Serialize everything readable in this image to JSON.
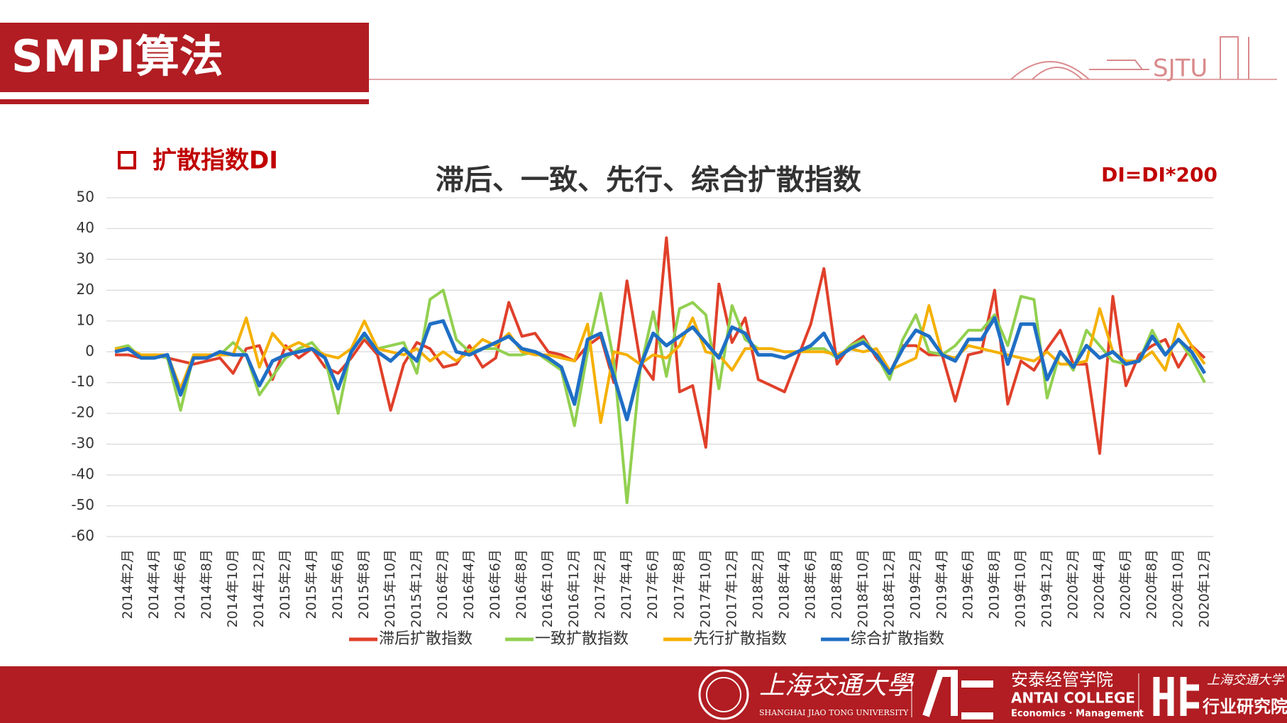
{
  "header": {
    "title": "SMPI算法",
    "logo": "SJTU"
  },
  "section": "扩散指数DI",
  "chart_data": {
    "type": "line",
    "title": "滞后、一致、先行、综合扩散指数",
    "annotation": "DI=DI*200",
    "ylim": [
      -60,
      50
    ],
    "yticks": [
      -60,
      -50,
      -40,
      -30,
      -20,
      -10,
      0,
      10,
      20,
      30,
      40,
      50
    ],
    "grid": true,
    "legend": "bottom",
    "categories": [
      null,
      "2014年2月",
      null,
      "2014年4月",
      null,
      "2014年6月",
      null,
      "2014年8月",
      null,
      "2014年10月",
      null,
      "2014年12月",
      null,
      "2015年2月",
      null,
      "2015年4月",
      null,
      "2015年6月",
      null,
      "2015年8月",
      null,
      "2015年10月",
      null,
      "2015年12月",
      null,
      "2016年2月",
      null,
      "2016年4月",
      null,
      "2016年6月",
      null,
      "2016年8月",
      null,
      "2016年10月",
      null,
      "2016年12月",
      null,
      "2017年2月",
      null,
      "2017年4月",
      null,
      "2017年6月",
      null,
      "2017年8月",
      null,
      "2017年10月",
      null,
      "2017年12月",
      null,
      "2018年2月",
      null,
      "2018年4月",
      null,
      "2018年6月",
      null,
      "2018年8月",
      null,
      "2018年10月",
      null,
      "2018年12月",
      null,
      "2019年2月",
      null,
      "2019年4月",
      null,
      "2019年6月",
      null,
      "2019年8月",
      null,
      "2019年10月",
      null,
      "2019年12月",
      null,
      "2020年2月",
      null,
      "2020年4月",
      null,
      "2020年6月",
      null,
      "2020年8月",
      null,
      "2020年10月",
      null,
      "2020年12月"
    ],
    "series": [
      {
        "name": "滞后扩散指数",
        "color": "#e0402a",
        "values": [
          -1,
          -1,
          -2,
          -1,
          -2,
          -3,
          -4,
          -3,
          -2,
          -7,
          1,
          2,
          -9,
          2,
          -2,
          1,
          -5,
          -7,
          -2,
          4,
          -1,
          -19,
          -4,
          3,
          1,
          -5,
          -4,
          2,
          -5,
          -2,
          16,
          5,
          6,
          0,
          -1,
          -3,
          2,
          5,
          -10,
          23,
          -3,
          -9,
          37,
          -13,
          -11,
          -31,
          22,
          3,
          11,
          -9,
          -11,
          -13,
          -2,
          9,
          27,
          -4,
          2,
          5,
          -2,
          -7,
          2,
          2,
          -1,
          -1,
          -16,
          -1,
          0,
          20,
          -17,
          -3,
          -6,
          1,
          7,
          -4,
          -4,
          -33,
          18,
          -11,
          -1,
          2,
          4,
          -5,
          2,
          -2
        ]
      },
      {
        "name": "一致扩散指数",
        "color": "#92d050",
        "values": [
          1,
          2,
          -2,
          -1,
          -2,
          -19,
          -1,
          -1,
          -1,
          3,
          -1,
          -14,
          -8,
          -2,
          1,
          3,
          -2,
          -20,
          1,
          5,
          1,
          2,
          3,
          -7,
          17,
          20,
          4,
          0,
          1,
          1,
          -1,
          -1,
          0,
          -3,
          -6,
          -24,
          0,
          19,
          -3,
          -49,
          -6,
          13,
          -8,
          14,
          16,
          12,
          -12,
          15,
          4,
          1,
          1,
          0,
          0,
          1,
          1,
          -2,
          2,
          4,
          -1,
          -9,
          4,
          12,
          0,
          -1,
          2,
          7,
          7,
          12,
          2,
          18,
          17,
          -15,
          0,
          -6,
          7,
          2,
          -3,
          -4,
          -3,
          7,
          -1,
          4,
          -2,
          -10
        ]
      },
      {
        "name": "先行扩散指数",
        "color": "#f5b000",
        "values": [
          1,
          1,
          -1,
          -1,
          -1,
          -12,
          -1,
          -1,
          -1,
          -1,
          11,
          -5,
          6,
          1,
          3,
          1,
          -1,
          -2,
          1,
          10,
          1,
          0,
          -1,
          1,
          -3,
          0,
          -3,
          0,
          4,
          2,
          6,
          0,
          -1,
          -1,
          -2,
          -3,
          9,
          -23,
          0,
          -1,
          -4,
          -1,
          -2,
          2,
          11,
          0,
          -1,
          -6,
          1,
          1,
          1,
          0,
          0,
          0,
          0,
          -1,
          1,
          0,
          1,
          -6,
          -4,
          -2,
          15,
          -1,
          -2,
          2,
          1,
          0,
          -1,
          -2,
          -3,
          0,
          -4,
          -4,
          -3,
          14,
          0,
          -3,
          -3,
          0,
          -6,
          9,
          2,
          -4
        ]
      },
      {
        "name": "综合扩散指数",
        "color": "#1f6fc5",
        "values": [
          0,
          1,
          -2,
          -2,
          -1,
          -14,
          -2,
          -2,
          0,
          -1,
          -1,
          -11,
          -3,
          -1,
          0,
          1,
          -2,
          -12,
          0,
          6,
          0,
          -3,
          1,
          -3,
          9,
          10,
          0,
          -1,
          1,
          3,
          5,
          1,
          0,
          -2,
          -5,
          -17,
          4,
          6,
          -8,
          -22,
          -5,
          6,
          2,
          5,
          8,
          3,
          -2,
          8,
          6,
          -1,
          -1,
          -2,
          0,
          2,
          6,
          -2,
          1,
          3,
          -1,
          -7,
          1,
          7,
          5,
          -1,
          -3,
          4,
          4,
          11,
          -4,
          9,
          9,
          -9,
          0,
          -5,
          2,
          -2,
          0,
          -4,
          -3,
          5,
          -1,
          4,
          0,
          -7
        ]
      }
    ]
  },
  "footer": {
    "sjtu_cn": "上海交通大學",
    "sjtu_en": "SHANGHAI JIAO TONG UNIVERSITY",
    "antai_cn": "安泰经管学院",
    "antai_en": "ANTAI COLLEGE",
    "antai_sub": "Economics · Management",
    "inst_top": "上海交通大学",
    "inst": "行业研究院"
  }
}
